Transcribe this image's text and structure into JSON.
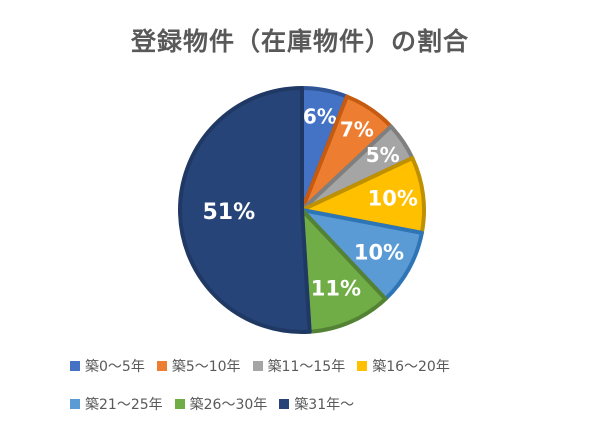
{
  "chart_data": {
    "type": "pie",
    "title": "登録物件（在庫物件）の割合",
    "categories": [
      "築0～5年",
      "築5～10年",
      "築11～15年",
      "築16～20年",
      "築21～25年",
      "築26～30年",
      "築31年～"
    ],
    "values": [
      6,
      7,
      5,
      10,
      10,
      11,
      51
    ],
    "labels": [
      "6%",
      "7%",
      "5%",
      "10%",
      "10%",
      "11%",
      "51%"
    ],
    "unit": "%",
    "colors": [
      "#4472C4",
      "#ED7D31",
      "#A5A5A5",
      "#FFC000",
      "#5B9BD5",
      "#70AD47",
      "#264478"
    ],
    "outline_colors": [
      "#2F5597",
      "#C55A11",
      "#7F7F7F",
      "#BF9000",
      "#2E75B6",
      "#548235",
      "#203864"
    ],
    "legend_position": "bottom",
    "start_angle": "12 o'clock",
    "direction": "clockwise"
  }
}
